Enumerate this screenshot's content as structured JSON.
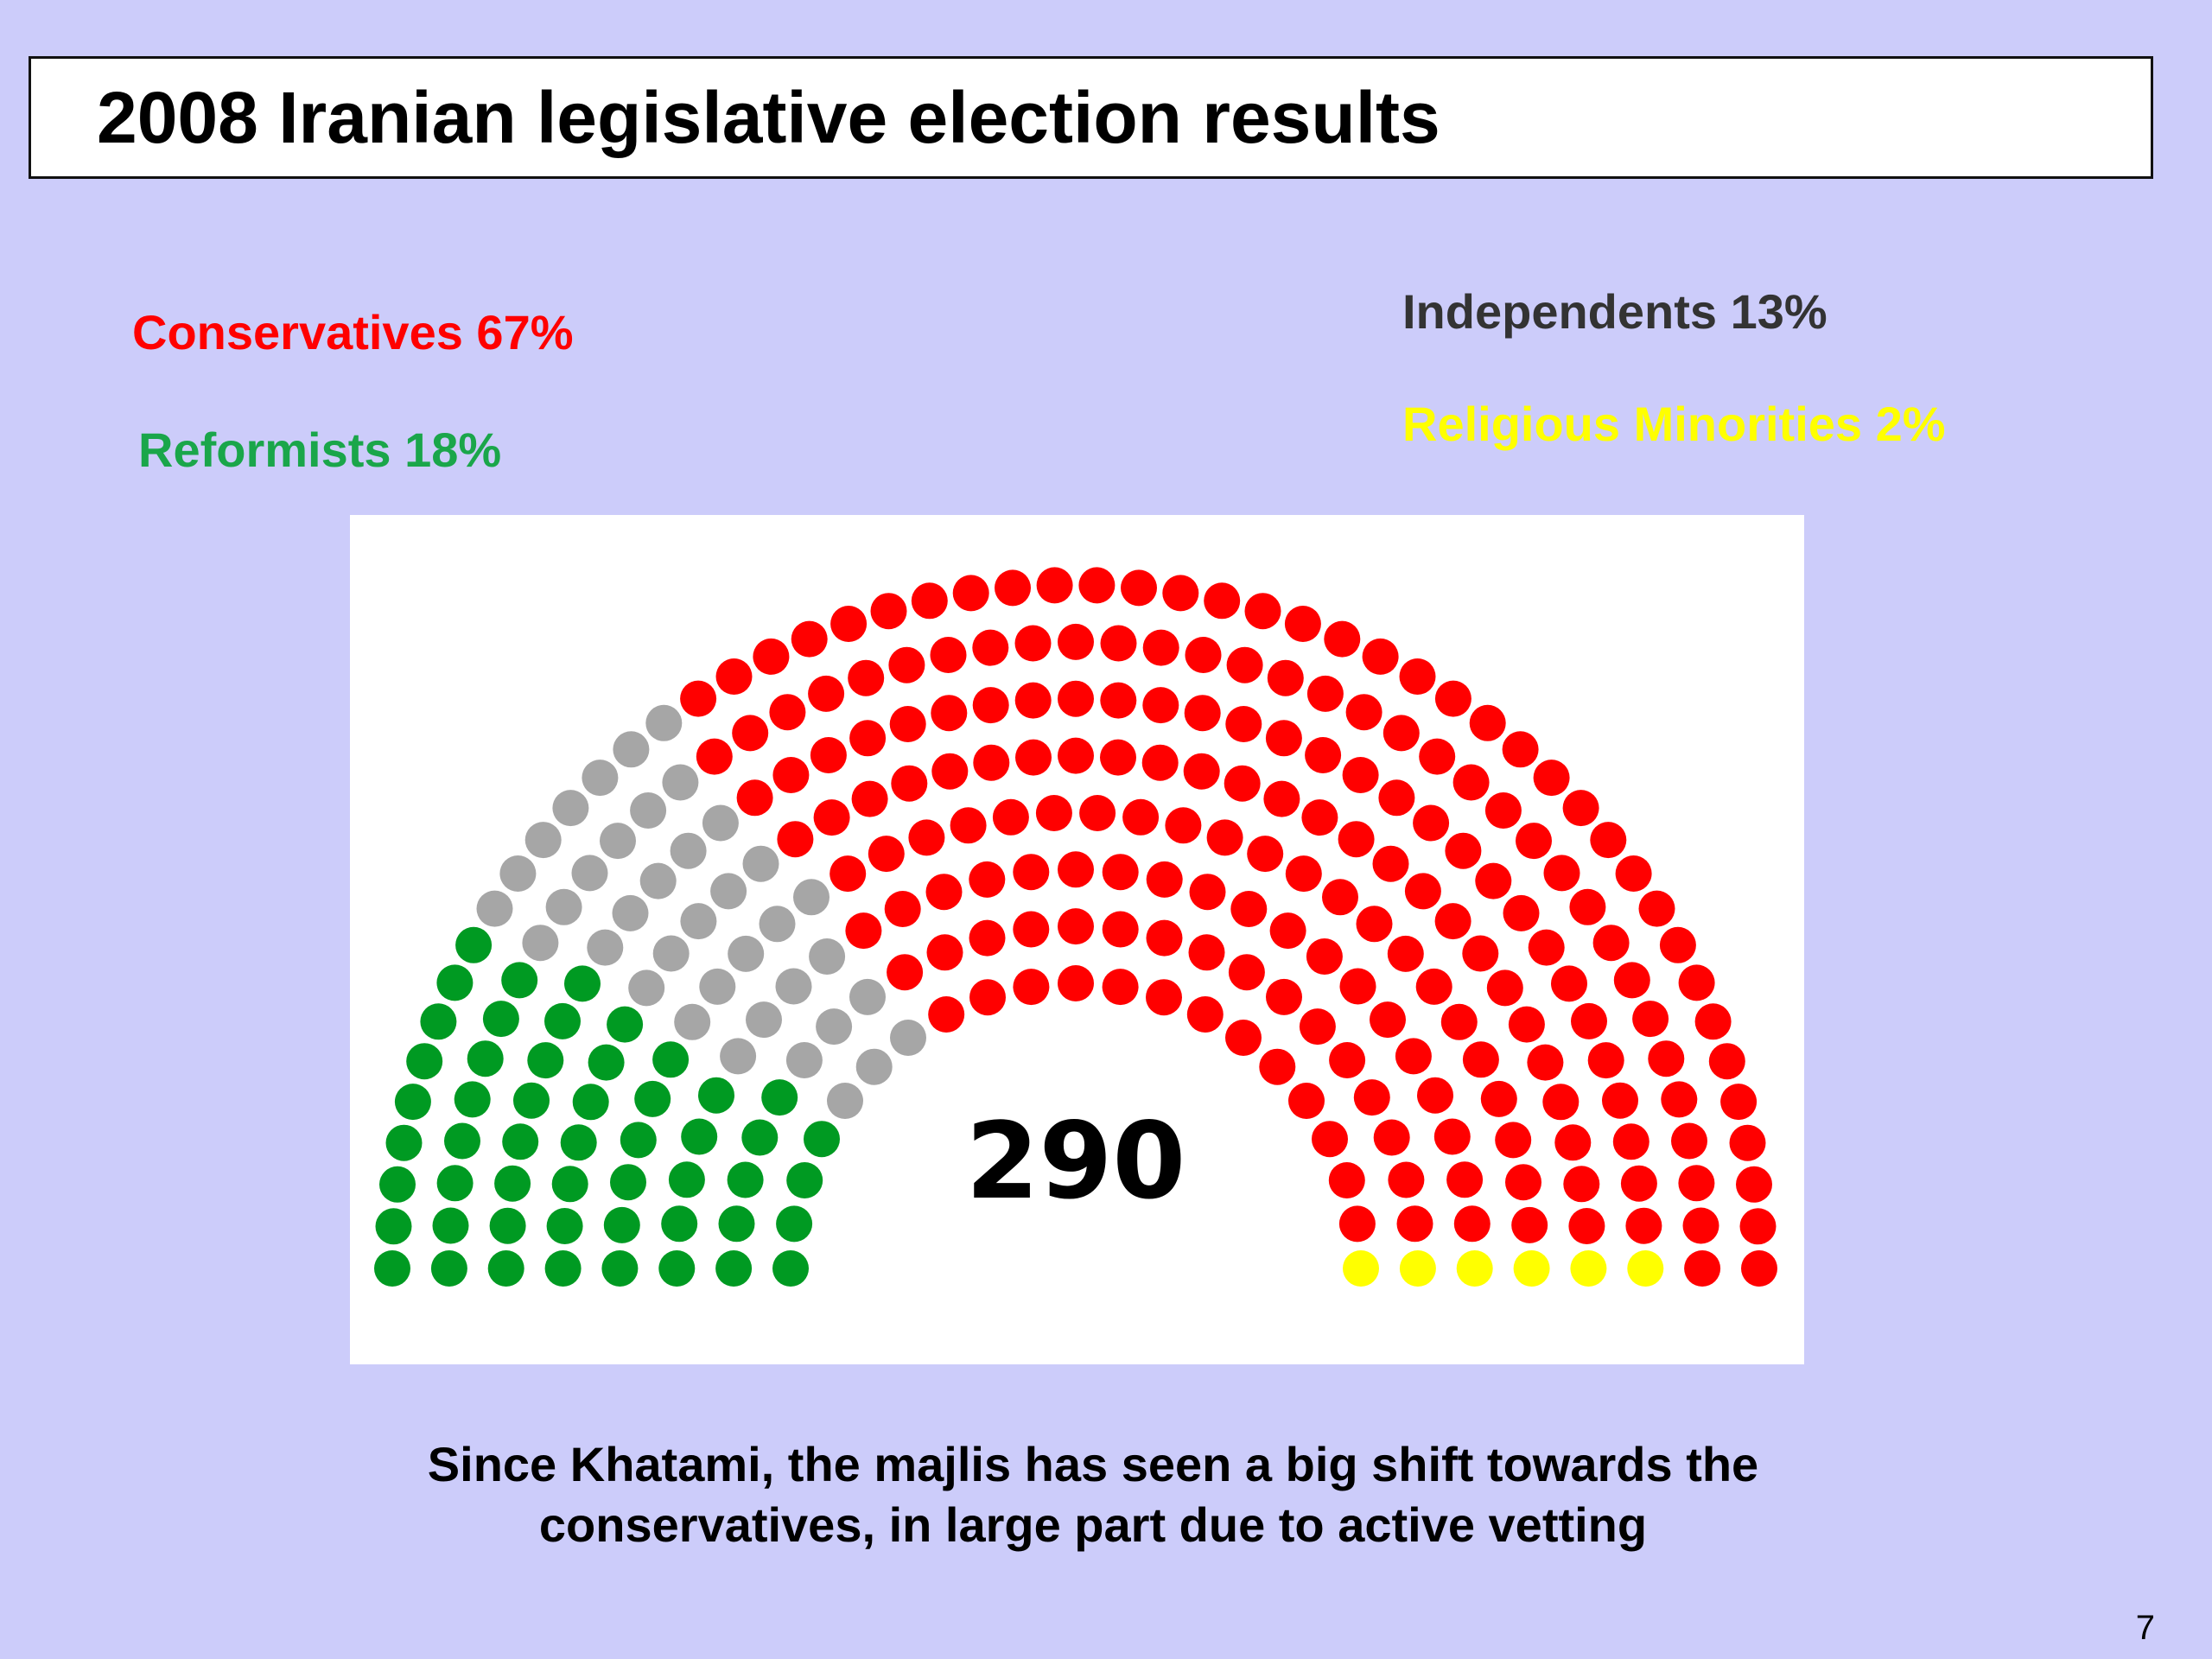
{
  "slide": {
    "title": "2008 Iranian legislative election results",
    "caption_line1": "Since Khatami, the majlis has seen a big shift towards the",
    "caption_line2": "conservatives, in large part due to active vetting",
    "page_number": "7"
  },
  "chart_data": {
    "type": "parliament",
    "total_label": "290",
    "total_seats": 290,
    "series": [
      {
        "name": "Reformists",
        "share_label": "Reformists 18%",
        "percent": 18,
        "color": "#009a22",
        "order": 1
      },
      {
        "name": "Independents",
        "share_label": "Independents 13%",
        "percent": 13,
        "color": "#a6a6a6",
        "order": 2
      },
      {
        "name": "Conservatives",
        "share_label": "Conservatives 67%",
        "percent": 67,
        "color": "#ff0000",
        "order": 3
      },
      {
        "name": "Religious Minorities",
        "share_label": "Religious Minorities 2%",
        "percent": 2,
        "color": "#ffff00",
        "order": 4
      }
    ]
  }
}
